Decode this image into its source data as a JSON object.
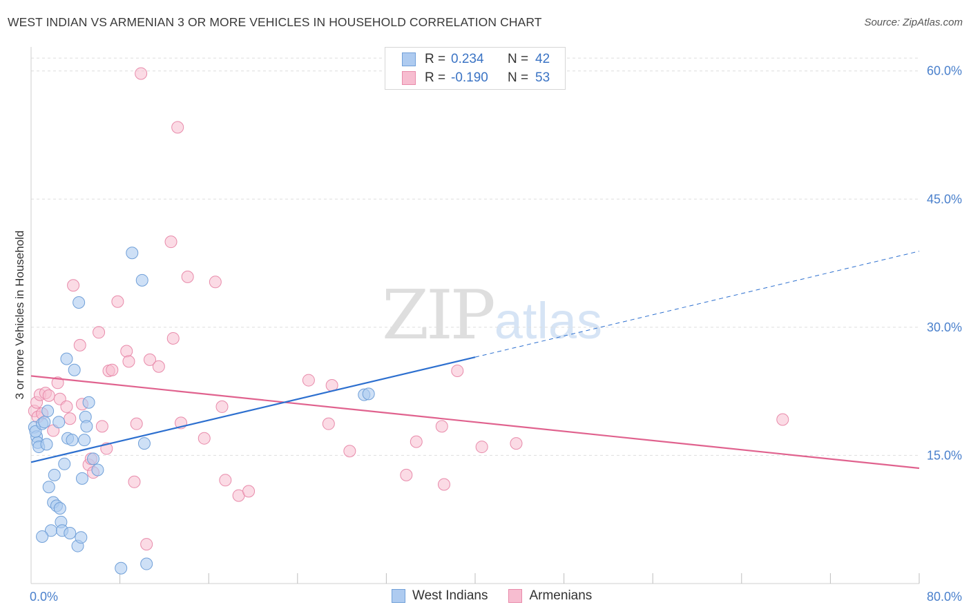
{
  "title": "WEST INDIAN VS ARMENIAN 3 OR MORE VEHICLES IN HOUSEHOLD CORRELATION CHART",
  "source": "Source: ZipAtlas.com",
  "watermark": {
    "part1": "ZIP",
    "part2": "atlas"
  },
  "colors": {
    "west_indians_fill": "#aecbf0",
    "west_indians_stroke": "#6f9fd8",
    "west_indians_line": "#2c6fcf",
    "armenians_fill": "#f7bdd0",
    "armenians_stroke": "#e88aaa",
    "armenians_line": "#e0628e",
    "tick_text": "#4a80cc",
    "grid": "#dddddd"
  },
  "legend": {
    "rows": [
      {
        "r_label": "R =",
        "r_value": "0.234",
        "n_label": "N =",
        "n_value": "42"
      },
      {
        "r_label": "R =",
        "r_value": "-0.190",
        "n_label": "N =",
        "n_value": "53"
      }
    ]
  },
  "bottom_legend": {
    "west_indians": "West Indians",
    "armenians": "Armenians"
  },
  "chart_data": {
    "type": "scatter",
    "title": "WEST INDIAN VS ARMENIAN 3 OR MORE VEHICLES IN HOUSEHOLD CORRELATION CHART",
    "xlabel": "",
    "ylabel": "3 or more Vehicles in Household",
    "xlim": [
      0,
      80
    ],
    "ylim": [
      0,
      62
    ],
    "x_tick_labels": {
      "min": "0.0%",
      "max": "80.0%"
    },
    "x_minor_ticks": [
      8,
      16,
      24,
      32,
      40,
      48,
      56,
      64,
      72,
      80
    ],
    "y_ticks": [
      {
        "value": 15,
        "label": "15.0%"
      },
      {
        "value": 30,
        "label": "30.0%"
      },
      {
        "value": 45,
        "label": "45.0%"
      },
      {
        "value": 60,
        "label": "60.0%"
      }
    ],
    "series": [
      {
        "name": "West Indians",
        "r": 0.234,
        "n": 42,
        "trend": {
          "x0": 0,
          "y0": 14.2,
          "x1": 40,
          "y1": 26.5,
          "dash_to_x": 80,
          "dash_to_y": 38.9
        },
        "points": [
          [
            0.3,
            18.3
          ],
          [
            0.5,
            17.2
          ],
          [
            0.6,
            16.5
          ],
          [
            0.4,
            17.8
          ],
          [
            0.7,
            16.0
          ],
          [
            1.0,
            18.7
          ],
          [
            1.2,
            18.9
          ],
          [
            1.4,
            16.3
          ],
          [
            1.5,
            20.2
          ],
          [
            1.6,
            11.3
          ],
          [
            1.8,
            6.2
          ],
          [
            1.0,
            5.5
          ],
          [
            2.0,
            9.5
          ],
          [
            2.1,
            12.7
          ],
          [
            2.3,
            9.1
          ],
          [
            2.5,
            18.9
          ],
          [
            2.6,
            8.8
          ],
          [
            2.7,
            7.2
          ],
          [
            2.8,
            6.2
          ],
          [
            3.0,
            14.0
          ],
          [
            3.2,
            26.3
          ],
          [
            3.3,
            17.0
          ],
          [
            3.5,
            5.9
          ],
          [
            3.7,
            16.8
          ],
          [
            3.9,
            25.0
          ],
          [
            4.2,
            4.4
          ],
          [
            4.3,
            32.9
          ],
          [
            4.5,
            5.4
          ],
          [
            4.6,
            12.3
          ],
          [
            4.8,
            16.8
          ],
          [
            4.9,
            19.5
          ],
          [
            5.0,
            18.4
          ],
          [
            5.2,
            21.2
          ],
          [
            5.6,
            14.6
          ],
          [
            6.0,
            13.3
          ],
          [
            8.1,
            1.8
          ],
          [
            9.1,
            38.7
          ],
          [
            10.0,
            35.5
          ],
          [
            10.2,
            16.4
          ],
          [
            10.4,
            2.3
          ],
          [
            30.0,
            22.1
          ],
          [
            30.4,
            22.2
          ]
        ]
      },
      {
        "name": "Armenians",
        "r": -0.19,
        "n": 53,
        "trend": {
          "x0": 0,
          "y0": 24.3,
          "x1": 80,
          "y1": 13.5
        },
        "points": [
          [
            0.3,
            20.2
          ],
          [
            0.5,
            21.2
          ],
          [
            0.6,
            19.5
          ],
          [
            0.8,
            22.1
          ],
          [
            1.0,
            19.9
          ],
          [
            1.3,
            22.3
          ],
          [
            1.6,
            22.0
          ],
          [
            2.0,
            17.9
          ],
          [
            2.4,
            23.5
          ],
          [
            2.6,
            21.6
          ],
          [
            3.2,
            20.7
          ],
          [
            3.5,
            19.3
          ],
          [
            3.8,
            34.9
          ],
          [
            4.4,
            27.9
          ],
          [
            4.6,
            21.0
          ],
          [
            5.2,
            13.9
          ],
          [
            5.4,
            14.6
          ],
          [
            5.6,
            13.0
          ],
          [
            6.1,
            29.4
          ],
          [
            6.4,
            18.4
          ],
          [
            6.8,
            15.8
          ],
          [
            7.0,
            24.9
          ],
          [
            7.3,
            25.0
          ],
          [
            7.8,
            33.0
          ],
          [
            8.6,
            27.2
          ],
          [
            8.8,
            26.0
          ],
          [
            9.3,
            11.9
          ],
          [
            9.5,
            18.7
          ],
          [
            9.9,
            59.7
          ],
          [
            10.4,
            4.6
          ],
          [
            10.7,
            26.2
          ],
          [
            11.5,
            25.4
          ],
          [
            12.6,
            40.0
          ],
          [
            12.8,
            28.7
          ],
          [
            13.2,
            53.4
          ],
          [
            13.5,
            18.8
          ],
          [
            14.1,
            35.9
          ],
          [
            15.6,
            17.0
          ],
          [
            16.6,
            35.3
          ],
          [
            17.2,
            20.7
          ],
          [
            17.5,
            12.1
          ],
          [
            18.7,
            10.3
          ],
          [
            19.6,
            10.8
          ],
          [
            25.0,
            23.8
          ],
          [
            26.8,
            18.7
          ],
          [
            27.1,
            23.2
          ],
          [
            28.7,
            15.5
          ],
          [
            33.8,
            12.7
          ],
          [
            34.7,
            16.6
          ],
          [
            37.0,
            18.4
          ],
          [
            37.2,
            11.6
          ],
          [
            38.4,
            24.9
          ],
          [
            40.6,
            16.0
          ],
          [
            43.7,
            16.4
          ],
          [
            67.7,
            19.2
          ]
        ]
      }
    ]
  }
}
